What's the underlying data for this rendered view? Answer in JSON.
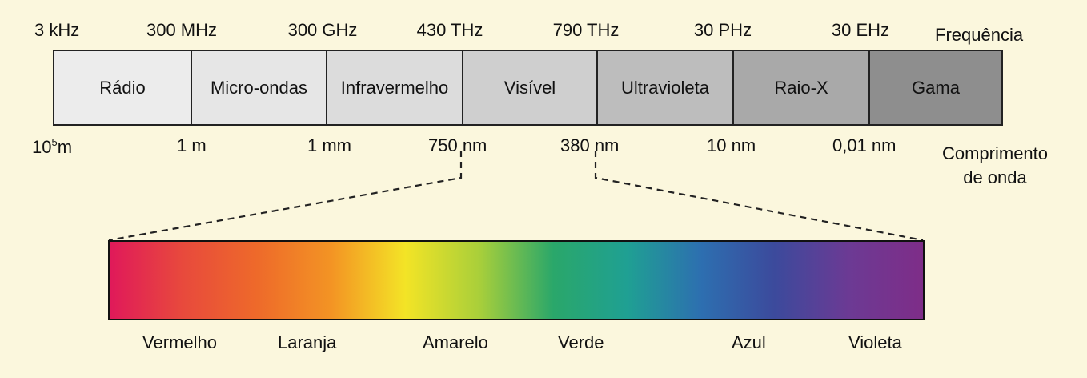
{
  "frequency_labels": [
    "3 kHz",
    "300 MHz",
    "300 GHz",
    "430 THz",
    "790 THz",
    "30 PHz",
    "30 EHz"
  ],
  "frequency_title": "Frequência",
  "bands": [
    {
      "name": "Rádio",
      "color": "#ececec"
    },
    {
      "name": "Micro-ondas",
      "color": "#e6e6e6"
    },
    {
      "name": "Infravermelho",
      "color": "#dcdcdc"
    },
    {
      "name": "Visível",
      "color": "#cfcfcf"
    },
    {
      "name": "Ultravioleta",
      "color": "#bdbdbd"
    },
    {
      "name": "Raio-X",
      "color": "#a9a9a9"
    },
    {
      "name": "Gama",
      "color": "#8e8e8e"
    }
  ],
  "wavelength_labels": {
    "first_base": "10",
    "first_exp": "5",
    "first_unit": "m",
    "rest": [
      "1 m",
      "1 mm",
      "750 nm",
      "380 nm",
      "10 nm",
      "0,01 nm"
    ]
  },
  "wavelength_title": [
    "Comprimento",
    "de onda"
  ],
  "spectrum_colors": [
    "#e0195a",
    "#e84a3c",
    "#ee6a2a",
    "#f39424",
    "#f3e426",
    "#a9cf3a",
    "#2aa76a",
    "#1fa093",
    "#2d6fb0",
    "#3c4a9c",
    "#6c3a94",
    "#7e2d88"
  ],
  "spectrum_labels": [
    "Vermelho",
    "Laranja",
    "Amarelo",
    "Verde",
    "Azul",
    "Violeta"
  ],
  "background_color": "#fbf7dd"
}
